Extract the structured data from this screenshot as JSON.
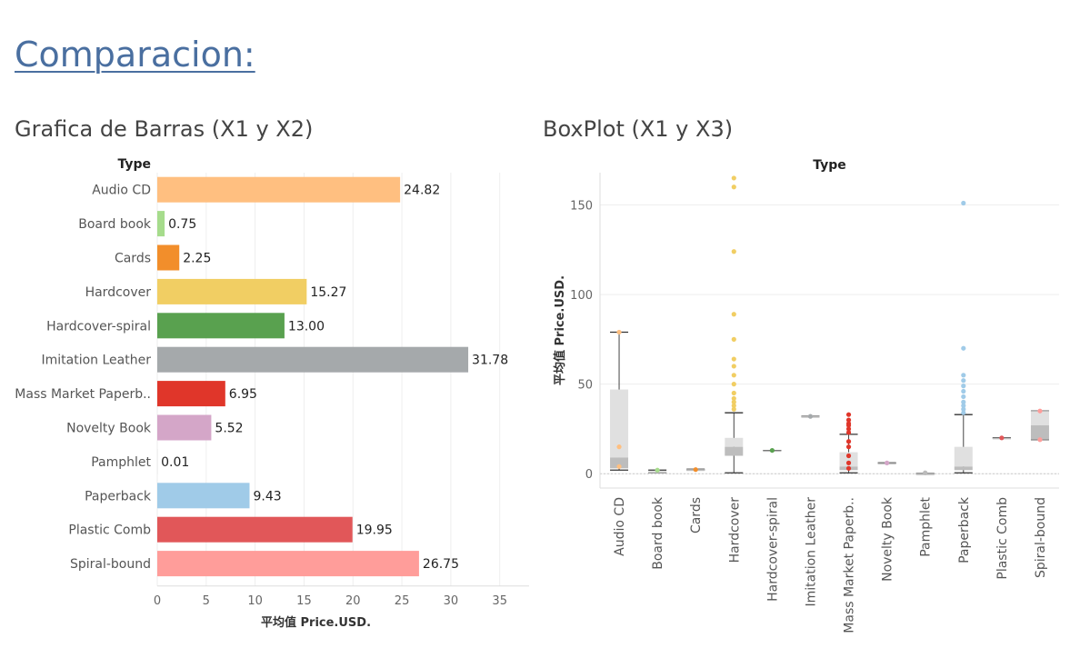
{
  "page": {
    "title": "Comparacion:"
  },
  "chart_data": [
    {
      "type": "bar",
      "title": "Grafica de Barras (X1 y X2)",
      "category_header": "Type",
      "xlabel": "平均值 Price.USD.",
      "xlim": [
        0,
        38
      ],
      "xticks": [
        0,
        5,
        10,
        15,
        20,
        25,
        30,
        35
      ],
      "categories": [
        "Audio CD",
        "Board book",
        "Cards",
        "Hardcover",
        "Hardcover-spiral",
        "Imitation Leather",
        "Mass Market Paperb..",
        "Novelty Book",
        "Pamphlet",
        "Paperback",
        "Plastic Comb",
        "Spiral-bound"
      ],
      "values": [
        24.82,
        0.75,
        2.25,
        15.27,
        13.0,
        31.78,
        6.95,
        5.52,
        0.01,
        9.43,
        19.95,
        26.75
      ],
      "value_labels": [
        "24.82",
        "0.75",
        "2.25",
        "15.27",
        "13.00",
        "31.78",
        "6.95",
        "5.52",
        "0.01",
        "9.43",
        "19.95",
        "26.75"
      ],
      "colors": [
        "#ffbf80",
        "#a6dc8c",
        "#f28e2b",
        "#f1ce63",
        "#59a14f",
        "#a5a9ab",
        "#e0362a",
        "#d4a6c8",
        "#bbbbbb",
        "#a0cbe8",
        "#e15759",
        "#ff9d9a"
      ]
    },
    {
      "type": "box",
      "title": "BoxPlot (X1 y X3)",
      "category_header": "Type",
      "ylabel": "平均值 Price.USD.",
      "ylim": [
        -8,
        168
      ],
      "yticks": [
        0,
        50,
        100,
        150
      ],
      "categories": [
        "Audio CD",
        "Board book",
        "Cards",
        "Hardcover",
        "Hardcover-spiral",
        "Imitation Leather",
        "Mass Market Paperb..",
        "Novelty Book",
        "Pamphlet",
        "Paperback",
        "Plastic Comb",
        "Spiral-bound"
      ],
      "colors": [
        "#ffbf80",
        "#a6dc8c",
        "#f28e2b",
        "#f1ce63",
        "#59a14f",
        "#a5a9ab",
        "#e0362a",
        "#d4a6c8",
        "#bbbbbb",
        "#a0cbe8",
        "#e15759",
        "#ff9d9a"
      ],
      "boxes": [
        {
          "min": 2,
          "q1": 3,
          "median": 9,
          "q3": 47,
          "max": 79,
          "outliers": [
            15,
            4,
            79
          ]
        },
        {
          "min": 0.5,
          "q1": 0.5,
          "median": 1,
          "q3": 1.5,
          "max": 2,
          "outliers": [
            2
          ]
        },
        {
          "min": 2,
          "q1": 2,
          "median": 2.3,
          "q3": 2.5,
          "max": 2.5,
          "outliers": [
            2.3
          ]
        },
        {
          "min": 0.5,
          "q1": 10,
          "median": 15,
          "q3": 20,
          "max": 34,
          "outliers": [
            165,
            160,
            124,
            89,
            75,
            64,
            60,
            55,
            50,
            45,
            42,
            40,
            38,
            36
          ]
        },
        {
          "min": 13,
          "q1": 13,
          "median": 13,
          "q3": 13,
          "max": 13,
          "outliers": [
            13
          ]
        },
        {
          "min": 32,
          "q1": 32,
          "median": 32,
          "q3": 32,
          "max": 32,
          "outliers": [
            32
          ]
        },
        {
          "min": 0.5,
          "q1": 2,
          "median": 4,
          "q3": 12,
          "max": 22,
          "outliers": [
            33,
            30,
            28,
            27,
            25,
            23,
            18,
            15,
            10,
            6,
            3
          ]
        },
        {
          "min": 6,
          "q1": 6,
          "median": 6,
          "q3": 6,
          "max": 6,
          "outliers": [
            6
          ]
        },
        {
          "min": 0.01,
          "q1": 0.01,
          "median": 0.01,
          "q3": 0.01,
          "max": 0.01,
          "outliers": [
            0.5
          ]
        },
        {
          "min": 0.5,
          "q1": 2,
          "median": 4,
          "q3": 15,
          "max": 33,
          "outliers": [
            151,
            70,
            55,
            52,
            49,
            46,
            43,
            40,
            38,
            36,
            34
          ]
        },
        {
          "min": 20,
          "q1": 20,
          "median": 20,
          "q3": 20,
          "max": 20,
          "outliers": [
            20
          ]
        },
        {
          "min": 19,
          "q1": 19,
          "median": 27,
          "q3": 35,
          "max": 35,
          "outliers": [
            35,
            19
          ]
        }
      ]
    }
  ]
}
